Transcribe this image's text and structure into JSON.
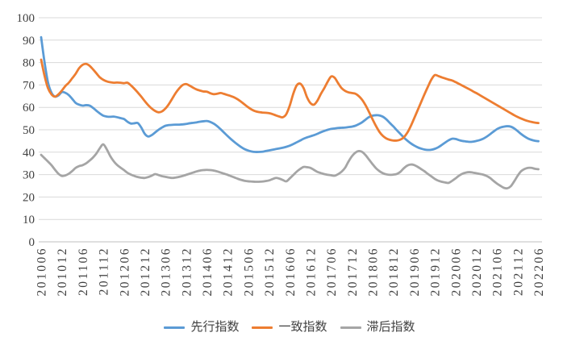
{
  "chart_data": {
    "type": "line",
    "title": "",
    "grid": "horizontal",
    "legend_position": "bottom",
    "ylim": [
      0,
      100
    ],
    "y_ticks": [
      0,
      10,
      20,
      30,
      40,
      50,
      60,
      70,
      80,
      90,
      100
    ],
    "x_tick_interval": 6,
    "x_tick_labels": [
      "201006",
      "201012",
      "201106",
      "201112",
      "201206",
      "201212",
      "201306",
      "201312",
      "201406",
      "201412",
      "201506",
      "201512",
      "201606",
      "201612",
      "201706",
      "201712",
      "201806",
      "201812",
      "201906",
      "201912",
      "202006",
      "202012",
      "202106",
      "202112",
      "202206"
    ],
    "colors": {
      "grid": "#D9D9D9",
      "axis": "#BFBFBF",
      "text": "#404040"
    },
    "series": [
      {
        "name": "先行指数",
        "color": "#5B9BD5",
        "values": [
          91.3,
          80,
          71,
          66.5,
          64.8,
          65.3,
          66.8,
          66.5,
          65.5,
          63.8,
          62,
          61.2,
          60.8,
          61,
          60.8,
          59.8,
          58.5,
          57.3,
          56.3,
          55.9,
          55.8,
          55.9,
          55.6,
          55.2,
          54.8,
          53.6,
          52.8,
          52.9,
          53,
          51,
          48.2,
          47,
          47.6,
          48.8,
          50,
          51,
          51.8,
          52.1,
          52.2,
          52.3,
          52.3,
          52.4,
          52.6,
          52.9,
          53.1,
          53.3,
          53.6,
          53.8,
          53.9,
          53.5,
          52.7,
          51.6,
          50.2,
          48.7,
          47.2,
          45.8,
          44.5,
          43.3,
          42.2,
          41.3,
          40.7,
          40.3,
          40.1,
          40.1,
          40.2,
          40.5,
          40.8,
          41.1,
          41.4,
          41.7,
          42,
          42.4,
          42.9,
          43.6,
          44.4,
          45.2,
          46,
          46.6,
          47.1,
          47.6,
          48.2,
          48.9,
          49.5,
          50,
          50.4,
          50.6,
          50.8,
          50.9,
          51,
          51.2,
          51.4,
          51.8,
          52.5,
          53.4,
          54.6,
          55.7,
          56.3,
          56.5,
          56.4,
          55.8,
          54.6,
          53,
          51.5,
          49.8,
          48.2,
          46.6,
          45.2,
          44,
          43,
          42.2,
          41.6,
          41.2,
          41,
          41.1,
          41.5,
          42.2,
          43.2,
          44.3,
          45.3,
          46,
          45.9,
          45.4,
          45,
          44.8,
          44.6,
          44.7,
          45,
          45.4,
          46,
          46.9,
          48,
          49.2,
          50.3,
          51,
          51.4,
          51.6,
          51.4,
          50.6,
          49.4,
          48.1,
          47,
          46.1,
          45.5,
          45.1,
          44.9
        ]
      },
      {
        "name": "一致指数",
        "color": "#ED7D31",
        "values": [
          81.3,
          74,
          68.5,
          65.8,
          64.8,
          65.8,
          67.5,
          69.5,
          71,
          73,
          75,
          77.5,
          79,
          79.4,
          78.6,
          77,
          75.2,
          73.4,
          72.3,
          71.6,
          71.2,
          71,
          71.1,
          71,
          70.8,
          71,
          69.8,
          68.3,
          66.6,
          64.8,
          62.8,
          61,
          59.5,
          58.4,
          57.8,
          58.2,
          59.5,
          61.5,
          64,
          66.5,
          68.5,
          70,
          70.4,
          69.7,
          68.8,
          68,
          67.5,
          67.1,
          67,
          66.3,
          65.9,
          66.1,
          66.4,
          66,
          65.5,
          65,
          64.4,
          63.5,
          62.4,
          61.2,
          60,
          59,
          58.3,
          57.9,
          57.7,
          57.6,
          57.4,
          57,
          56.4,
          55.9,
          55.6,
          57,
          60.8,
          66,
          69.8,
          70.6,
          68.6,
          64.5,
          61.9,
          61.2,
          63,
          66,
          68.6,
          71.5,
          73.8,
          73.2,
          70.8,
          68.6,
          67.4,
          66.7,
          66.4,
          66.1,
          65,
          63.3,
          60.8,
          57.8,
          54.6,
          51.6,
          49,
          47.2,
          46.1,
          45.5,
          45.2,
          45.2,
          45.6,
          46.6,
          48.6,
          51.5,
          55,
          58.6,
          62.2,
          65.8,
          69.2,
          72.4,
          74.4,
          74,
          73.4,
          72.9,
          72.4,
          72,
          71.3,
          70.5,
          69.7,
          68.9,
          68.1,
          67.2,
          66.4,
          65.5,
          64.6,
          63.7,
          62.8,
          61.9,
          61,
          60.1,
          59.2,
          58.3,
          57.4,
          56.5,
          55.7,
          55,
          54.4,
          53.9,
          53.5,
          53.2,
          53
        ]
      },
      {
        "name": "滞后指数",
        "color": "#A5A5A5",
        "values": [
          38.8,
          37.3,
          35.8,
          34.2,
          32.2,
          30.4,
          29.4,
          29.6,
          30.4,
          31.6,
          33,
          33.8,
          34.2,
          35,
          36.2,
          37.6,
          39.4,
          41.8,
          43.5,
          41.3,
          38.3,
          36,
          34.3,
          33.1,
          32,
          30.8,
          30,
          29.4,
          28.9,
          28.6,
          28.5,
          28.9,
          29.5,
          30.2,
          29.8,
          29.3,
          29,
          28.7,
          28.5,
          28.7,
          29,
          29.4,
          29.9,
          30.4,
          30.9,
          31.4,
          31.8,
          32,
          32.1,
          32,
          31.8,
          31.4,
          30.9,
          30.4,
          29.9,
          29.3,
          28.7,
          28.1,
          27.6,
          27.2,
          27,
          26.9,
          26.8,
          26.8,
          26.9,
          27.1,
          27.4,
          28,
          28.5,
          28.2,
          27.6,
          27,
          28.3,
          29.8,
          31.3,
          32.5,
          33.4,
          33.3,
          33,
          32.1,
          31.2,
          30.7,
          30.2,
          29.9,
          29.7,
          29.5,
          30.2,
          31.3,
          33,
          35.8,
          38.2,
          39.8,
          40.5,
          40.1,
          38.6,
          36.6,
          34.6,
          32.8,
          31.5,
          30.6,
          30.1,
          29.9,
          30,
          30.3,
          31.2,
          32.8,
          34,
          34.5,
          34.3,
          33.5,
          32.5,
          31.5,
          30.3,
          29.2,
          28.1,
          27.3,
          26.8,
          26.5,
          26.3,
          27.2,
          28.3,
          29.5,
          30.4,
          30.9,
          31.1,
          30.9,
          30.6,
          30.3,
          30,
          29.4,
          28.5,
          27.2,
          26,
          25,
          24.1,
          23.9,
          24.8,
          27,
          29.5,
          31.5,
          32.5,
          33,
          33,
          32.6,
          32.4
        ]
      }
    ]
  }
}
